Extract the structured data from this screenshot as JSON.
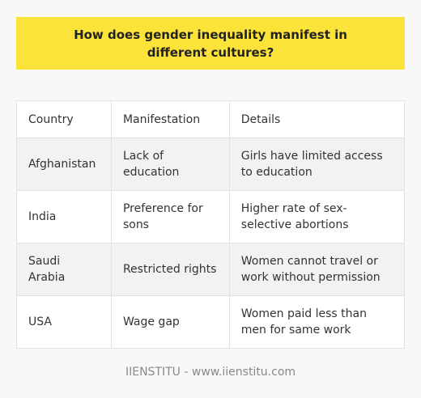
{
  "title": "How does gender inequality manifest in different cultures?",
  "table": {
    "headers": [
      "Country",
      "Manifestation",
      "Details"
    ],
    "rows": [
      [
        "Afghanistan",
        "Lack of education",
        "Girls have limited access to education"
      ],
      [
        "India",
        "Preference for sons",
        "Higher rate of sex-selective abortions"
      ],
      [
        "Saudi Arabia",
        "Restricted rights",
        "Women cannot travel or work without permission"
      ],
      [
        "USA",
        "Wage gap",
        "Women paid less than men for same work"
      ]
    ]
  },
  "footer": "IIENSTITU - www.iienstitu.com",
  "colors": {
    "banner": "#fbe33a",
    "background": "#f8f8f8",
    "shaded_row": "#f2f2f2",
    "border": "#e2e2e2"
  }
}
